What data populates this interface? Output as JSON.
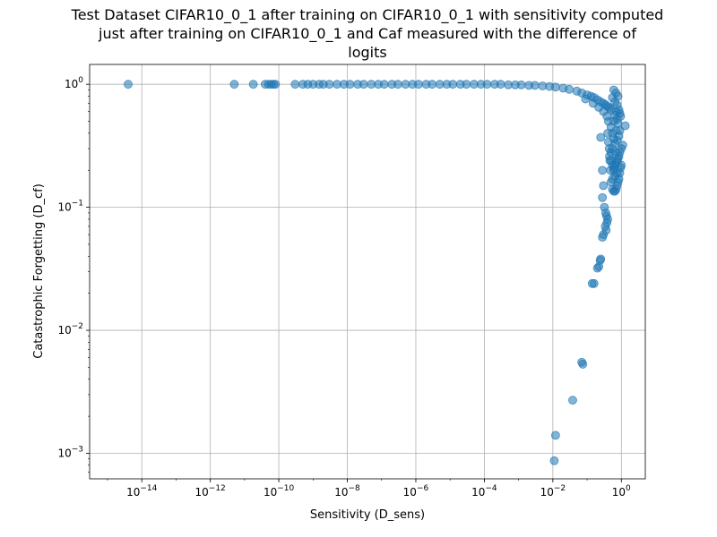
{
  "chart_data": {
    "type": "scatter",
    "title_lines": [
      "Test Dataset CIFAR10_0_1 after training on CIFAR10_0_1 with sensitivity computed",
      "just after training on CIFAR10_0_1 and Caf measured with the difference of",
      "logits"
    ],
    "xlabel": "Sensitivity (D_sens)",
    "ylabel": "Catastrophic Forgetting (D_cf)",
    "xscale": "log",
    "yscale": "log",
    "xlim": [
      3e-16,
      5
    ],
    "ylim": [
      0.00062,
      1.45
    ],
    "grid": true,
    "marker_color": "#1f77b4",
    "marker_alpha": 0.55,
    "x_ticks": [
      {
        "value": 1e-14,
        "base": "10",
        "exp": "−14"
      },
      {
        "value": 1e-12,
        "base": "10",
        "exp": "−12"
      },
      {
        "value": 1e-10,
        "base": "10",
        "exp": "−10"
      },
      {
        "value": 1e-08,
        "base": "10",
        "exp": "−8"
      },
      {
        "value": 1e-06,
        "base": "10",
        "exp": "−6"
      },
      {
        "value": 0.0001,
        "base": "10",
        "exp": "−4"
      },
      {
        "value": 0.01,
        "base": "10",
        "exp": "−2"
      },
      {
        "value": 1,
        "base": "10",
        "exp": "0"
      }
    ],
    "y_ticks": [
      {
        "value": 0.001,
        "base": "10",
        "exp": "−3"
      },
      {
        "value": 0.01,
        "base": "10",
        "exp": "−2"
      },
      {
        "value": 0.1,
        "base": "10",
        "exp": "−1"
      },
      {
        "value": 1,
        "base": "10",
        "exp": "0"
      }
    ],
    "points": [
      [
        4e-15,
        1.0
      ],
      [
        5e-12,
        1.0
      ],
      [
        1.8e-11,
        1.0
      ],
      [
        4e-11,
        1.0
      ],
      [
        5e-11,
        1.0
      ],
      [
        6e-11,
        1.0
      ],
      [
        7e-11,
        1.0
      ],
      [
        8e-11,
        1.0
      ],
      [
        3e-10,
        1.0
      ],
      [
        5e-10,
        1.0
      ],
      [
        7e-10,
        1.0
      ],
      [
        1e-09,
        1.0
      ],
      [
        1.5e-09,
        1.0
      ],
      [
        2e-09,
        1.0
      ],
      [
        3e-09,
        1.0
      ],
      [
        5e-09,
        1.0
      ],
      [
        8e-09,
        1.0
      ],
      [
        1.2e-08,
        1.0
      ],
      [
        2e-08,
        1.0
      ],
      [
        3e-08,
        1.0
      ],
      [
        5e-08,
        1.0
      ],
      [
        8e-08,
        1.0
      ],
      [
        1.2e-07,
        1.0
      ],
      [
        2e-07,
        1.0
      ],
      [
        3e-07,
        1.0
      ],
      [
        5e-07,
        1.0
      ],
      [
        8e-07,
        1.0
      ],
      [
        1.2e-06,
        1.0
      ],
      [
        2e-06,
        1.0
      ],
      [
        3e-06,
        1.0
      ],
      [
        5e-06,
        1.0
      ],
      [
        8e-06,
        1.0
      ],
      [
        1.2e-05,
        1.0
      ],
      [
        2e-05,
        1.0
      ],
      [
        3e-05,
        1.0
      ],
      [
        5e-05,
        1.0
      ],
      [
        8e-05,
        1.0
      ],
      [
        0.00012,
        1.0
      ],
      [
        0.0002,
        1.0
      ],
      [
        0.0003,
        1.0
      ],
      [
        0.0005,
        0.99
      ],
      [
        0.0008,
        0.99
      ],
      [
        0.0012,
        0.99
      ],
      [
        0.002,
        0.98
      ],
      [
        0.003,
        0.98
      ],
      [
        0.005,
        0.97
      ],
      [
        0.008,
        0.96
      ],
      [
        0.012,
        0.95
      ],
      [
        0.02,
        0.93
      ],
      [
        0.03,
        0.91
      ],
      [
        0.05,
        0.88
      ],
      [
        0.07,
        0.85
      ],
      [
        0.1,
        0.82
      ],
      [
        0.13,
        0.8
      ],
      [
        0.16,
        0.78
      ],
      [
        0.2,
        0.75
      ],
      [
        0.25,
        0.72
      ],
      [
        0.3,
        0.7
      ],
      [
        0.35,
        0.68
      ],
      [
        0.4,
        0.66
      ],
      [
        0.45,
        0.64
      ],
      [
        0.5,
        0.62
      ],
      [
        0.09,
        0.76
      ],
      [
        0.15,
        0.7
      ],
      [
        0.22,
        0.65
      ],
      [
        0.3,
        0.6
      ],
      [
        0.38,
        0.55
      ],
      [
        0.42,
        0.5
      ],
      [
        0.5,
        0.45
      ],
      [
        0.55,
        0.4
      ],
      [
        0.6,
        0.5
      ],
      [
        0.65,
        0.56
      ],
      [
        0.7,
        0.6
      ],
      [
        0.75,
        0.52
      ],
      [
        0.8,
        0.48
      ],
      [
        0.9,
        0.42
      ],
      [
        1.3,
        0.46
      ],
      [
        0.85,
        0.38
      ],
      [
        0.75,
        0.35
      ],
      [
        0.65,
        0.33
      ],
      [
        0.55,
        0.3
      ],
      [
        0.5,
        0.28
      ],
      [
        0.45,
        0.26
      ],
      [
        0.5,
        0.24
      ],
      [
        0.55,
        0.22
      ],
      [
        0.6,
        0.2
      ],
      [
        1.1,
        0.32
      ],
      [
        1.0,
        0.3
      ],
      [
        0.9,
        0.28
      ],
      [
        0.85,
        0.26
      ],
      [
        0.8,
        0.25
      ],
      [
        0.75,
        0.24
      ],
      [
        0.7,
        0.23
      ],
      [
        0.65,
        0.22
      ],
      [
        0.6,
        0.21
      ],
      [
        1.0,
        0.22
      ],
      [
        0.95,
        0.21
      ],
      [
        0.9,
        0.19
      ],
      [
        0.85,
        0.17
      ],
      [
        0.8,
        0.16
      ],
      [
        0.75,
        0.15
      ],
      [
        0.7,
        0.14
      ],
      [
        0.65,
        0.135
      ],
      [
        0.6,
        0.135
      ],
      [
        0.55,
        0.14
      ],
      [
        0.5,
        0.16
      ],
      [
        0.48,
        0.2
      ],
      [
        0.46,
        0.24
      ],
      [
        0.44,
        0.3
      ],
      [
        0.42,
        0.34
      ],
      [
        0.4,
        0.4
      ],
      [
        0.25,
        0.37
      ],
      [
        0.28,
        0.2
      ],
      [
        0.3,
        0.15
      ],
      [
        0.28,
        0.12
      ],
      [
        0.32,
        0.1
      ],
      [
        0.35,
        0.09
      ],
      [
        0.37,
        0.085
      ],
      [
        0.4,
        0.08
      ],
      [
        0.38,
        0.075
      ],
      [
        0.34,
        0.07
      ],
      [
        0.36,
        0.065
      ],
      [
        0.3,
        0.06
      ],
      [
        0.28,
        0.057
      ],
      [
        0.25,
        0.038
      ],
      [
        0.24,
        0.037
      ],
      [
        0.22,
        0.033
      ],
      [
        0.2,
        0.032
      ],
      [
        0.16,
        0.024
      ],
      [
        0.14,
        0.024
      ],
      [
        0.07,
        0.0055
      ],
      [
        0.075,
        0.0053
      ],
      [
        0.038,
        0.0027
      ],
      [
        0.012,
        0.0014
      ],
      [
        0.011,
        0.00087
      ],
      [
        0.6,
        0.9
      ],
      [
        0.7,
        0.85
      ],
      [
        0.8,
        0.8
      ],
      [
        0.55,
        0.78
      ],
      [
        0.65,
        0.72
      ],
      [
        0.75,
        0.68
      ],
      [
        0.85,
        0.62
      ],
      [
        0.9,
        0.58
      ],
      [
        0.95,
        0.55
      ],
      [
        0.7,
        0.42
      ],
      [
        0.6,
        0.36
      ],
      [
        0.7,
        0.28
      ],
      [
        0.75,
        0.19
      ],
      [
        0.65,
        0.18
      ],
      [
        0.55,
        0.17
      ]
    ]
  }
}
